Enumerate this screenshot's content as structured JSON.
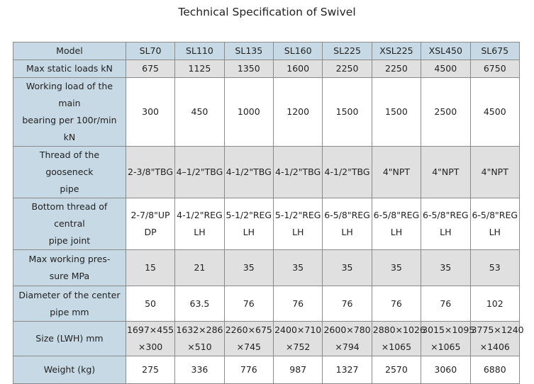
{
  "title": "Technical Specification of Swivel",
  "colors": {
    "header_bg": "#c6d9e5",
    "alt_row_bg": "#e0e0e0",
    "border": "#8a8a8a"
  },
  "header": {
    "label": "Model",
    "models": [
      "SL70",
      "SL110",
      "SL135",
      "SL160",
      "SL225",
      "XSL225",
      "XSL450",
      "SL675"
    ]
  },
  "rows": [
    {
      "label": [
        "Max static loads kN"
      ],
      "values": [
        [
          "675"
        ],
        [
          "1125"
        ],
        [
          "1350"
        ],
        [
          "1600"
        ],
        [
          "2250"
        ],
        [
          "2250"
        ],
        [
          "4500"
        ],
        [
          "6750"
        ]
      ]
    },
    {
      "label": [
        "Working load of the main",
        "bearing per 100r/min kN"
      ],
      "values": [
        [
          "300"
        ],
        [
          "450"
        ],
        [
          "1000"
        ],
        [
          "1200"
        ],
        [
          "1500"
        ],
        [
          "1500"
        ],
        [
          "2500"
        ],
        [
          "4500"
        ]
      ]
    },
    {
      "label": [
        "Thread of the gooseneck",
        "pipe"
      ],
      "values": [
        [
          "2-3/8\"TBG"
        ],
        [
          "4–1/2\"TBG"
        ],
        [
          "4-1/2\"TBG"
        ],
        [
          "4-1/2\"TBG"
        ],
        [
          "4-1/2\"TBG"
        ],
        [
          "4\"NPT"
        ],
        [
          "4\"NPT"
        ],
        [
          "4\"NPT"
        ]
      ]
    },
    {
      "label": [
        "Bottom thread of central",
        "pipe joint"
      ],
      "values": [
        [
          "2-7/8\"UP",
          "DP"
        ],
        [
          "4-1/2\"REG",
          "LH"
        ],
        [
          "5-1/2\"REG",
          "LH"
        ],
        [
          "5-1/2\"REG",
          "LH"
        ],
        [
          "6-5/8\"REG",
          "LH"
        ],
        [
          "6-5/8\"REG",
          "LH"
        ],
        [
          "6-5/8\"REG",
          "LH"
        ],
        [
          "6-5/8\"REG",
          "LH"
        ]
      ]
    },
    {
      "label": [
        "Max working pres-",
        "sure  MPa"
      ],
      "values": [
        [
          "15"
        ],
        [
          "21"
        ],
        [
          "35"
        ],
        [
          "35"
        ],
        [
          "35"
        ],
        [
          "35"
        ],
        [
          "35"
        ],
        [
          "53"
        ]
      ]
    },
    {
      "label": [
        "Diameter of the center",
        "pipe mm"
      ],
      "values": [
        [
          "50"
        ],
        [
          "63.5"
        ],
        [
          "76"
        ],
        [
          "76"
        ],
        [
          "76"
        ],
        [
          "76"
        ],
        [
          "76"
        ],
        [
          "102"
        ]
      ]
    },
    {
      "label": [
        "Size (LWH) mm"
      ],
      "values": [
        [
          "1697×455",
          "×300"
        ],
        [
          "1632×286",
          "×510"
        ],
        [
          "2260×675",
          "×745"
        ],
        [
          "2400×710",
          "×752"
        ],
        [
          "2600×780",
          "×794"
        ],
        [
          "2880×1026",
          "×1065"
        ],
        [
          "3015×1095",
          "×1065"
        ],
        [
          "3775×1240",
          "×1406"
        ]
      ]
    },
    {
      "label": [
        "Weight (kg)"
      ],
      "values": [
        [
          "275"
        ],
        [
          "336"
        ],
        [
          "776"
        ],
        [
          "987"
        ],
        [
          "1327"
        ],
        [
          "2570"
        ],
        [
          "3060"
        ],
        [
          "6880"
        ]
      ]
    }
  ]
}
